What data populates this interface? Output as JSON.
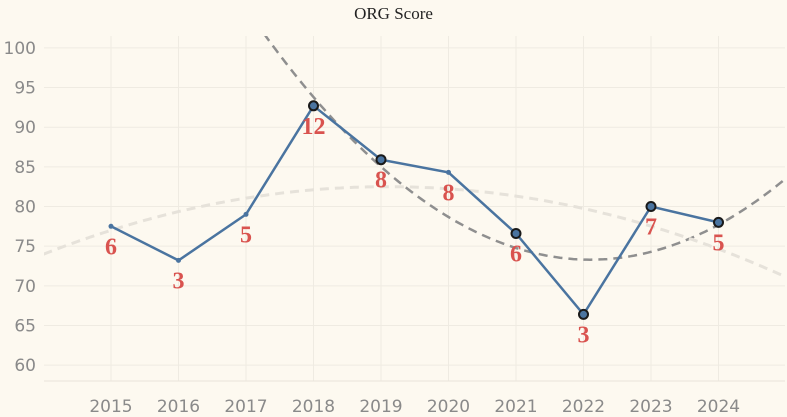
{
  "chart_data": {
    "type": "line",
    "title": "ORG Score",
    "xlabel": "",
    "ylabel": "",
    "x": [
      "2015",
      "2016",
      "2017",
      "2018",
      "2019",
      "2020",
      "2021",
      "2022",
      "2023",
      "2024"
    ],
    "series": [
      {
        "values": [
          77.5,
          73.2,
          79.0,
          92.7,
          85.9,
          84.3,
          76.6,
          66.4,
          80.0,
          78.0
        ],
        "labels": [
          "6",
          "3",
          "5",
          "12",
          "8",
          "8",
          "6",
          "3",
          "7",
          "5"
        ],
        "highlighted": [
          false,
          false,
          false,
          true,
          true,
          false,
          true,
          true,
          true,
          true
        ],
        "color": "#4a74a0"
      }
    ],
    "trend_lines": [
      {
        "style": "dashed",
        "color": "#8f8f8f",
        "shape": "quadratic",
        "min_at": 2022.1,
        "min_value": 73.3,
        "value_at_2018": 93.8
      },
      {
        "style": "dashed",
        "color": "#e6e2da",
        "shape": "quadratic",
        "max_at": 2019.1,
        "max_value": 82.5,
        "value_at_2015": 77.0
      }
    ],
    "yticks": [
      60,
      65,
      70,
      75,
      80,
      85,
      90,
      95,
      100
    ],
    "ylim": [
      58,
      101.5
    ],
    "grid": true,
    "colors": {
      "line": "#4a74a0",
      "labels": "#d9534f",
      "marker_edge": "#1a1a1a",
      "grid": "#efebe2"
    }
  }
}
